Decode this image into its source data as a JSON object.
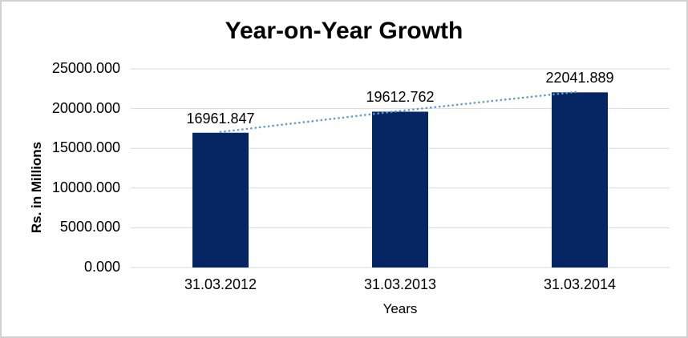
{
  "chart_data": {
    "type": "bar",
    "title": "Year-on-Year Growth",
    "xlabel": "Years",
    "ylabel": "Rs. in Millions",
    "categories": [
      "31.03.2012",
      "31.03.2013",
      "31.03.2014"
    ],
    "values": [
      16961.847,
      19612.762,
      22041.889
    ],
    "data_labels": [
      "16961.847",
      "19612.762",
      "22041.889"
    ],
    "ylim": [
      0,
      25000
    ],
    "y_ticks": [
      {
        "value": 0,
        "label": "0.000"
      },
      {
        "value": 5000,
        "label": "5000.000"
      },
      {
        "value": 10000,
        "label": "10000.000"
      },
      {
        "value": 15000,
        "label": "15000.000"
      },
      {
        "value": 20000,
        "label": "20000.000"
      },
      {
        "value": 25000,
        "label": "25000.000"
      }
    ],
    "grid": true,
    "legend": false,
    "trendline": {
      "type": "linear",
      "style": "dotted"
    },
    "colors": {
      "bar": "#052563",
      "trendline": "#5B9BD5",
      "gridline": "#D9D9D9",
      "text": "#000000",
      "background": "#FFFFFF",
      "border": "#D1D1D1"
    }
  }
}
